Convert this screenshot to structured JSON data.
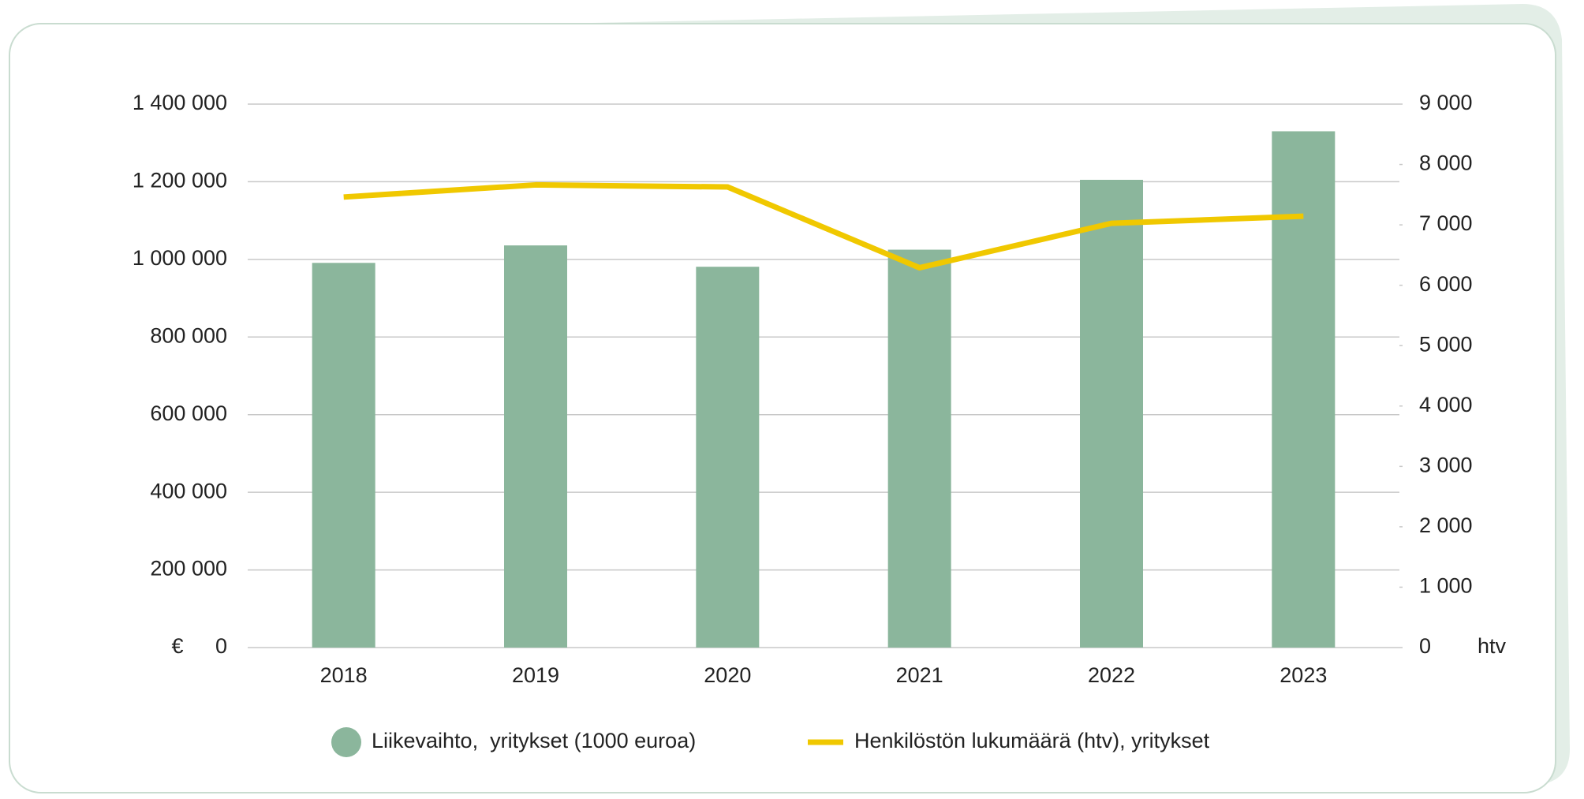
{
  "chart_data": {
    "type": "bar_line",
    "categories": [
      "2018",
      "2019",
      "2020",
      "2021",
      "2022",
      "2023"
    ],
    "series": [
      {
        "name": "Liikevaihto,  yritykset (1000 euroa)",
        "color": "#8bb69c",
        "type": "bar",
        "values": [
          991000,
          1036000,
          981000,
          1025000,
          1205000,
          1330000
        ]
      },
      {
        "name": "Henkilöstön lukumäärä (htv), yritykset",
        "color": "#f0c800",
        "type": "line",
        "axis": "y2",
        "values": [
          7461,
          7662,
          7628,
          6290,
          7026,
          7143
        ]
      }
    ],
    "ylabel": "€",
    "y2label": "htv",
    "ylim": [
      0,
      1400000
    ],
    "yticks": [
      0,
      {
        "value": 200000,
        "label": "200 000"
      },
      {
        "value": 400000,
        "label": "400 000"
      },
      {
        "value": 600000,
        "label": "600 000"
      },
      {
        "value": 800000,
        "label": "800 000"
      },
      {
        "value": 1000000,
        "label": "1 000 000"
      },
      {
        "value": 1200000,
        "label": "1 200 000"
      },
      {
        "value": 1400000,
        "label": "1 400 000"
      }
    ],
    "y2lim": [
      0,
      9000
    ],
    "y2ticks": [
      0,
      {
        "value": 1000,
        "label": "1 000"
      },
      {
        "value": 2000,
        "label": "2 000"
      },
      {
        "value": 3000,
        "label": "3 000"
      },
      {
        "value": 4000,
        "label": "4 000"
      },
      {
        "value": 5000,
        "label": "5 000"
      },
      {
        "value": 6000,
        "label": "6 000"
      },
      {
        "value": 7000,
        "label": "7 000"
      },
      {
        "value": 8000,
        "label": "8 000"
      },
      {
        "value": 9000,
        "label": "9 000"
      }
    ],
    "grid": true,
    "legend": "bottom"
  }
}
